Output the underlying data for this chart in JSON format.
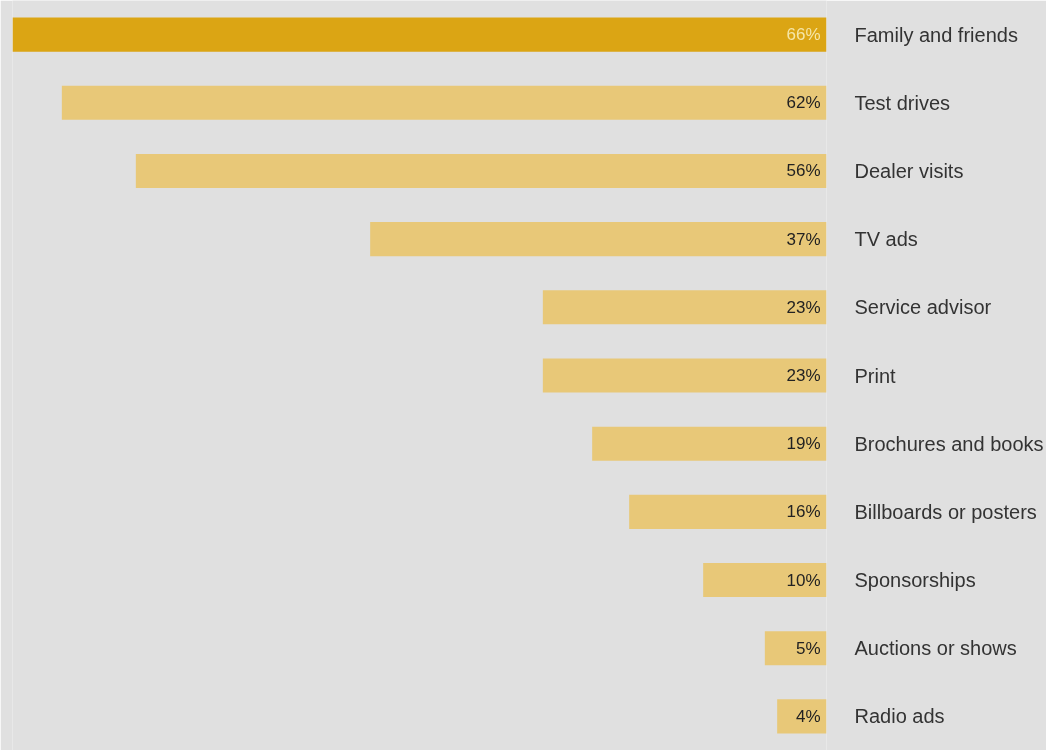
{
  "chart_data": {
    "type": "bar",
    "orientation": "horizontal",
    "categories": [
      "Family and friends",
      "Test drives",
      "Dealer visits",
      "TV ads",
      "Service advisor",
      "Print",
      "Brochures and books",
      "Billboards or posters",
      "Sponsorships",
      "Auctions or shows",
      "Radio ads"
    ],
    "values": [
      66,
      62,
      56,
      37,
      23,
      23,
      19,
      16,
      10,
      5,
      4
    ],
    "colors": [
      "#dba514",
      "#e8c878",
      "#e8c878",
      "#e8c878",
      "#e8c878",
      "#e8c878",
      "#e8c878",
      "#e8c878",
      "#e8c878",
      "#e8c878",
      "#e8c878"
    ],
    "data_labels": true,
    "value_labels": [
      "66%",
      "62%",
      "56%",
      "37%",
      "23%",
      "23%",
      "19%",
      "16%",
      "10%",
      "5%",
      "4%"
    ],
    "xlim": [
      66,
      0
    ],
    "tick_labels": "y"
  }
}
